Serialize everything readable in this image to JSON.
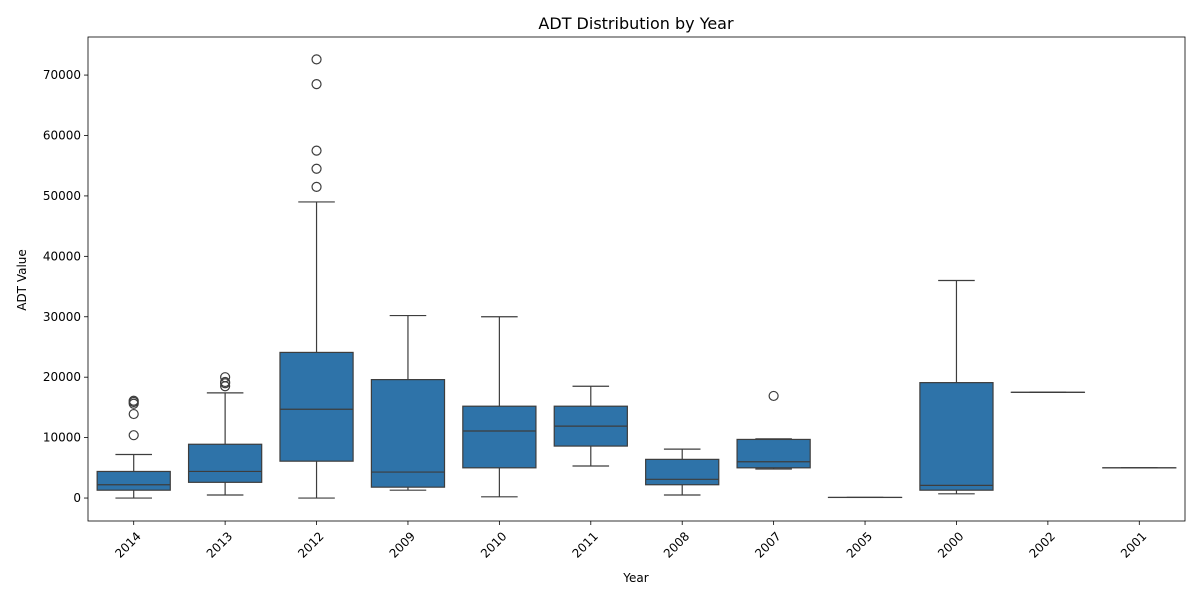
{
  "chart_data": {
    "type": "box",
    "title": "ADT Distribution by Year",
    "xlabel": "Year",
    "ylabel": "ADT Value",
    "ylim": [
      -3800,
      76300
    ],
    "yticks": [
      0,
      10000,
      20000,
      30000,
      40000,
      50000,
      60000,
      70000
    ],
    "ytick_labels": [
      "0",
      "10000",
      "20000",
      "30000",
      "40000",
      "50000",
      "60000",
      "70000"
    ],
    "grid": false,
    "legend": "none",
    "box_color": "#2e73a9",
    "line_color": "#3d3d3d",
    "categories": [
      "2014",
      "2013",
      "2012",
      "2009",
      "2010",
      "2011",
      "2008",
      "2007",
      "2005",
      "2000",
      "2002",
      "2001"
    ],
    "boxes": [
      {
        "year": "2014",
        "whisker_low": 0,
        "q1": 1300,
        "median": 2200,
        "q3": 4400,
        "whisker_high": 7200,
        "outliers": [
          10400,
          13900,
          15600,
          15900,
          16100
        ]
      },
      {
        "year": "2013",
        "whisker_low": 500,
        "q1": 2600,
        "median": 4400,
        "q3": 8900,
        "whisker_high": 17400,
        "outliers": [
          18500,
          19000,
          19200,
          20000
        ]
      },
      {
        "year": "2012",
        "whisker_low": 0,
        "q1": 6100,
        "median": 14700,
        "q3": 24100,
        "whisker_high": 49000,
        "outliers": [
          51500,
          54500,
          57500,
          68500,
          72600
        ]
      },
      {
        "year": "2009",
        "whisker_low": 1300,
        "q1": 1800,
        "median": 4300,
        "q3": 19600,
        "whisker_high": 30200,
        "outliers": []
      },
      {
        "year": "2010",
        "whisker_low": 200,
        "q1": 5000,
        "median": 11100,
        "q3": 15200,
        "whisker_high": 30000,
        "outliers": []
      },
      {
        "year": "2011",
        "whisker_low": 5300,
        "q1": 8600,
        "median": 11900,
        "q3": 15200,
        "whisker_high": 18500,
        "outliers": []
      },
      {
        "year": "2008",
        "whisker_low": 500,
        "q1": 2200,
        "median": 3100,
        "q3": 6400,
        "whisker_high": 8100,
        "outliers": []
      },
      {
        "year": "2007",
        "whisker_low": 4800,
        "q1": 5000,
        "median": 6000,
        "q3": 9700,
        "whisker_high": 9800,
        "outliers": [
          16900
        ]
      },
      {
        "year": "2005",
        "whisker_low": 100,
        "q1": 100,
        "median": 100,
        "q3": 100,
        "whisker_high": 100,
        "outliers": []
      },
      {
        "year": "2000",
        "whisker_low": 700,
        "q1": 1300,
        "median": 2100,
        "q3": 19100,
        "whisker_high": 36000,
        "outliers": []
      },
      {
        "year": "2002",
        "whisker_low": 17500,
        "q1": 17500,
        "median": 17500,
        "q3": 17500,
        "whisker_high": 17500,
        "outliers": []
      },
      {
        "year": "2001",
        "whisker_low": 5000,
        "q1": 5000,
        "median": 5000,
        "q3": 5000,
        "whisker_high": 5000,
        "outliers": []
      }
    ]
  }
}
